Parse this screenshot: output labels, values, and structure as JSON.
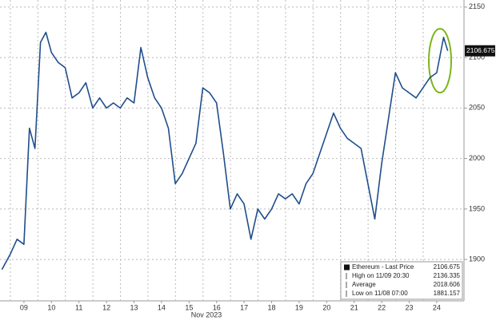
{
  "chart_data": {
    "type": "line",
    "xlabel": "Nov 2023",
    "x": [
      8.2,
      8.5,
      8.75,
      9.0,
      9.2,
      9.4,
      9.6,
      9.8,
      10.0,
      10.25,
      10.5,
      10.75,
      11.0,
      11.25,
      11.5,
      11.75,
      12.0,
      12.25,
      12.5,
      12.75,
      13.0,
      13.25,
      13.5,
      13.75,
      14.0,
      14.25,
      14.5,
      14.75,
      15.0,
      15.25,
      15.5,
      15.75,
      16.0,
      16.25,
      16.5,
      16.75,
      17.0,
      17.25,
      17.5,
      17.75,
      18.0,
      18.25,
      18.5,
      18.75,
      19.0,
      19.25,
      19.5,
      19.75,
      20.0,
      20.25,
      20.5,
      20.75,
      21.0,
      21.25,
      21.5,
      21.75,
      22.0,
      22.25,
      22.5,
      22.75,
      23.0,
      23.25,
      23.5,
      23.75,
      24.0,
      24.25,
      24.4
    ],
    "series": [
      {
        "name": "Ethereum",
        "color": "#1f4e8c",
        "values": [
          1890,
          1905,
          1920,
          1915,
          2030,
          2010,
          2115,
          2125,
          2105,
          2095,
          2090,
          2060,
          2065,
          2075,
          2050,
          2060,
          2050,
          2055,
          2050,
          2060,
          2055,
          2110,
          2080,
          2060,
          2050,
          2030,
          1975,
          1985,
          2000,
          2015,
          2070,
          2065,
          2055,
          2005,
          1950,
          1965,
          1955,
          1920,
          1950,
          1940,
          1950,
          1965,
          1960,
          1965,
          1955,
          1975,
          1985,
          2005,
          2025,
          2045,
          2030,
          2020,
          2015,
          2010,
          1975,
          1940,
          1995,
          2040,
          2085,
          2070,
          2065,
          2060,
          2070,
          2080,
          2085,
          2120,
          2106.675
        ]
      }
    ],
    "xlim": [
      8.13,
      24.99
    ],
    "xticks": [
      {
        "value": 9,
        "label": "09"
      },
      10,
      11,
      12,
      13,
      14,
      15,
      16,
      17,
      18,
      19,
      20,
      21,
      22,
      23,
      24
    ],
    "ylim": [
      1859,
      2157
    ],
    "yticks": [
      1900,
      1950,
      2000,
      2050,
      2100,
      2150
    ],
    "grid": true,
    "legend": [
      {
        "label": "Ethereum - Last Price",
        "value": 2106.675
      },
      {
        "label": "High on 11/09 20:30",
        "value": 2136.335
      },
      {
        "label": "Average",
        "value": 2018.606
      },
      {
        "label": "Low on 11/08 07:00",
        "value": 1881.157
      }
    ]
  }
}
